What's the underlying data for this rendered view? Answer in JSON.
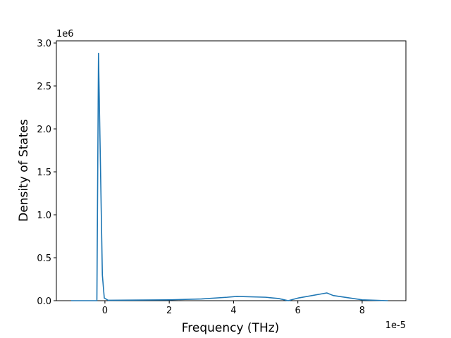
{
  "chart_data": {
    "type": "line",
    "x_label": "Frequency (THz)",
    "y_label": "Density of States",
    "x_offset_label": "1e-5",
    "y_offset_label": "1e6",
    "x": [
      -1.05,
      -0.25,
      -0.2,
      -0.08,
      -0.02,
      0.1,
      2,
      3,
      3.8,
      4.1,
      5,
      5.4,
      5.7,
      6,
      6.9,
      7.1,
      8,
      8.8
    ],
    "series": [
      {
        "color": "#1f77b4",
        "values": [
          0,
          0,
          2.88,
          0.3,
          0.03,
          0.005,
          0.01,
          0.02,
          0.04,
          0.05,
          0.04,
          0.025,
          0,
          0.03,
          0.09,
          0.06,
          0.01,
          0
        ]
      }
    ],
    "xlim": [
      -1.51,
      9.36
    ],
    "ylim": [
      0,
      3.025
    ],
    "xticks": [
      0,
      2,
      4,
      6,
      8
    ],
    "yticks": [
      {
        "value": 0,
        "label": "0.0"
      },
      {
        "value": 0.5,
        "label": "0.5"
      },
      {
        "value": 1,
        "label": "1.0"
      },
      {
        "value": 1.5,
        "label": "1.5"
      },
      {
        "value": 2,
        "label": "2.0"
      },
      {
        "value": 2.5,
        "label": "2.5"
      },
      {
        "value": 3,
        "label": "3.0"
      }
    ],
    "grid": false
  }
}
